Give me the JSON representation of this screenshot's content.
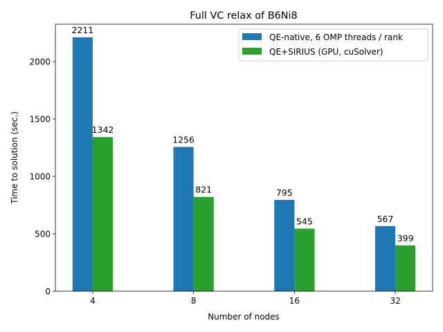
{
  "chart_data": {
    "type": "bar",
    "title": "Full VC relax of B6Ni8",
    "xlabel": "Number of nodes",
    "ylabel": "Time to solution (sec.)",
    "categories": [
      "4",
      "8",
      "16",
      "32"
    ],
    "ylim": [
      0,
      2325
    ],
    "yticks": [
      0,
      500,
      1000,
      1500,
      2000
    ],
    "grid": false,
    "legend_position": "top-right",
    "series": [
      {
        "name": "QE-native, 6 OMP threads / rank",
        "color": "#1f77b4",
        "values": [
          2211,
          1256,
          795,
          567
        ]
      },
      {
        "name": "QE+SIRIUS (GPU, cuSolver)",
        "color": "#2ca02c",
        "values": [
          1342,
          821,
          545,
          399
        ]
      }
    ]
  }
}
